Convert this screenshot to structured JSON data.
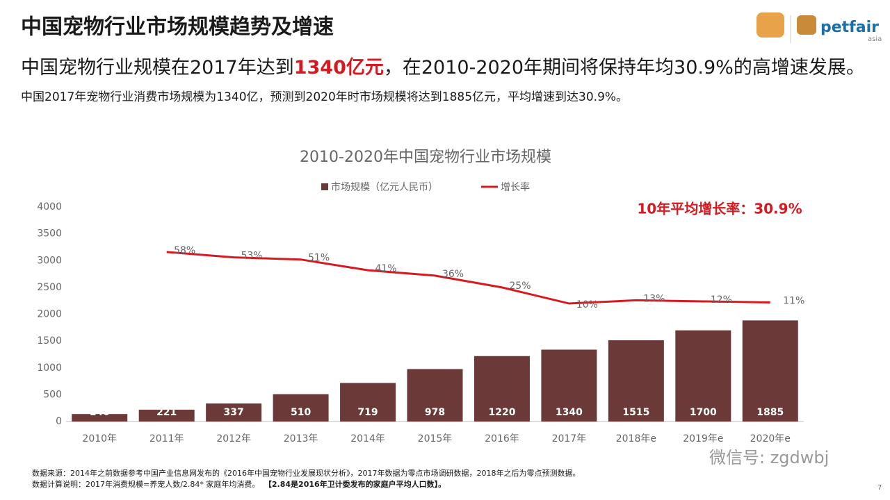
{
  "header": {
    "title": "中国宠物行业市场规模趋势及增速",
    "headline": [
      "中国宠物行业规模在2017年达到",
      "1340亿元",
      "，在2010-2020年期间将保持年均30.9%的高增速发展。"
    ],
    "note": "中国2017年宠物行业消费市场规模为1340亿，预测到2020年时市场规模将达到1885亿元，平均增速到达30.9%。",
    "logo": [
      "petfair",
      "asia"
    ]
  },
  "chart_data": {
    "type": "bar",
    "title": "2010-2020年中国宠物行业市场规模",
    "categories": [
      "2010年",
      "2011年",
      "2012年",
      "2013年",
      "2014年",
      "2015年",
      "2016年",
      "2017年",
      "2018年e",
      "2019年e",
      "2020年e"
    ],
    "series": [
      {
        "name": "市场规模（亿元人民币）",
        "type": "bar",
        "color": "#6b3a38",
        "values": [
          140,
          221,
          337,
          510,
          719,
          978,
          1220,
          1340,
          1515,
          1700,
          1885
        ]
      },
      {
        "name": "增长率",
        "type": "line",
        "axis": "y2",
        "color": "#d71a20",
        "values": [
          null,
          58,
          53,
          51,
          41,
          36,
          25,
          10,
          13,
          12,
          11
        ],
        "value_labels": [
          null,
          "58%",
          "53%",
          "51%",
          "41%",
          "36%",
          "25%",
          "10%",
          "13%",
          "12%",
          "11%"
        ]
      }
    ],
    "ylim": [
      0,
      4000
    ],
    "yticks": [
      0,
      500,
      1000,
      1500,
      2000,
      2500,
      3000,
      3500,
      4000
    ],
    "y2lim": [
      -100,
      100
    ],
    "grid": false,
    "legend": "top",
    "annotation": "10年平均增长率：30.9%"
  },
  "footer": {
    "source": "数据来源：2014年之前数据参考中国产业信息网发布的《2016年中国宠物行业发展现状分析》，2017年数据为零点市场调研数据，2018年之后为零点预测数据。",
    "method": [
      "数据计算说明：2017年消费规模=养宠人数/2.84* 家庭年均消费。",
      "【2.84是2016年卫计委发布的家庭户平均人口数】。"
    ],
    "watermark": "微信号: zgdwbj",
    "page": "7"
  }
}
